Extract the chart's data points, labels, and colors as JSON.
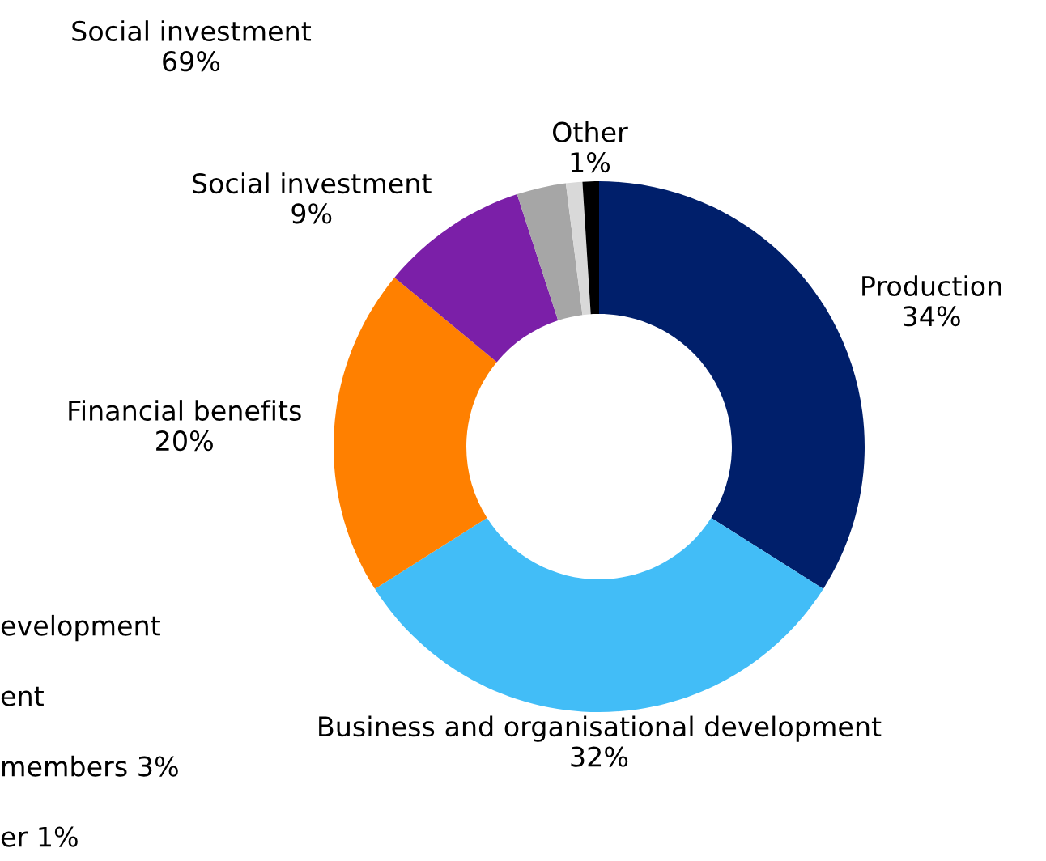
{
  "chart_data": {
    "type": "donut",
    "categories": [
      "Production",
      "Business and organisational development",
      "Financial benefits",
      "Social investment",
      null,
      null,
      "Other"
    ],
    "values": [
      34,
      32,
      20,
      9,
      3,
      1,
      1
    ],
    "colors": [
      "#001f6b",
      "#42bdf7",
      "#ff8000",
      "#7b1fa8",
      "#a6a6a6",
      "#d9d9d9",
      "#000000"
    ],
    "value_labels": [
      "34%",
      "32%",
      "20%",
      "9%",
      null,
      null,
      "1%"
    ],
    "annotations": [
      "Social investment\n69%",
      "evelopment",
      "ent",
      "members 3%",
      "er 1%"
    ]
  }
}
